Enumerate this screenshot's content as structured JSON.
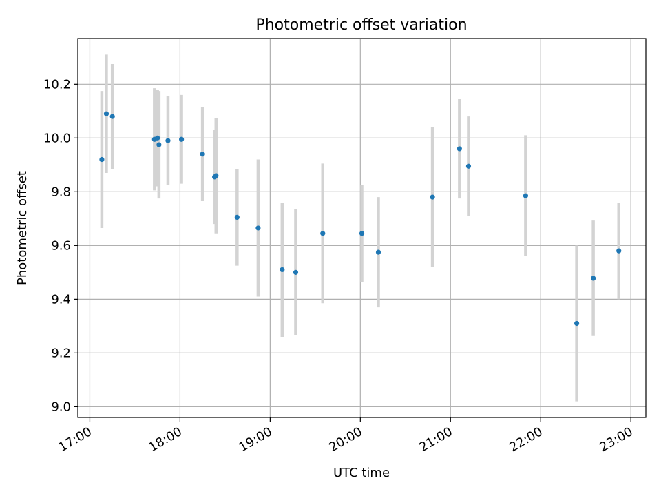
{
  "chart_data": {
    "type": "scatter",
    "title": "Photometric offset variation",
    "xlabel": "UTC time",
    "ylabel": "Photometric offset",
    "x_ticks": [
      "17:00",
      "18:00",
      "19:00",
      "20:00",
      "21:00",
      "22:00",
      "23:00"
    ],
    "y_ticks": [
      "9.0",
      "9.2",
      "9.4",
      "9.6",
      "9.8",
      "10.0",
      "10.2"
    ],
    "xlim": [
      "16:52",
      "23:10"
    ],
    "ylim": [
      8.96,
      10.37
    ],
    "grid": true,
    "colors": {
      "point": "#1f77b4",
      "errorbar": "#d3d3d3",
      "grid": "#b0b0b0"
    },
    "points": [
      {
        "t": "17:08",
        "y": 9.92,
        "err": 0.255
      },
      {
        "t": "17:11",
        "y": 10.09,
        "err": 0.22
      },
      {
        "t": "17:15",
        "y": 10.08,
        "err": 0.195
      },
      {
        "t": "17:43",
        "y": 9.995,
        "err": 0.19
      },
      {
        "t": "17:45",
        "y": 10.0,
        "err": 0.18
      },
      {
        "t": "17:46",
        "y": 9.975,
        "err": 0.2
      },
      {
        "t": "17:52",
        "y": 9.99,
        "err": 0.165
      },
      {
        "t": "18:01",
        "y": 9.995,
        "err": 0.165
      },
      {
        "t": "18:15",
        "y": 9.94,
        "err": 0.175
      },
      {
        "t": "18:23",
        "y": 9.855,
        "err": 0.175
      },
      {
        "t": "18:24",
        "y": 9.86,
        "err": 0.215
      },
      {
        "t": "18:38",
        "y": 9.705,
        "err": 0.18
      },
      {
        "t": "18:52",
        "y": 9.665,
        "err": 0.255
      },
      {
        "t": "19:08",
        "y": 9.51,
        "err": 0.25
      },
      {
        "t": "19:17",
        "y": 9.5,
        "err": 0.235
      },
      {
        "t": "19:35",
        "y": 9.645,
        "err": 0.26
      },
      {
        "t": "20:01",
        "y": 9.645,
        "err": 0.18
      },
      {
        "t": "20:12",
        "y": 9.575,
        "err": 0.205
      },
      {
        "t": "20:48",
        "y": 9.78,
        "err": 0.26
      },
      {
        "t": "21:06",
        "y": 9.96,
        "err": 0.185
      },
      {
        "t": "21:12",
        "y": 9.895,
        "err": 0.185
      },
      {
        "t": "21:50",
        "y": 9.785,
        "err": 0.225
      },
      {
        "t": "22:24",
        "y": 9.31,
        "err": 0.29
      },
      {
        "t": "22:35",
        "y": 9.478,
        "err": 0.215
      },
      {
        "t": "22:52",
        "y": 9.58,
        "err": 0.18
      }
    ]
  }
}
